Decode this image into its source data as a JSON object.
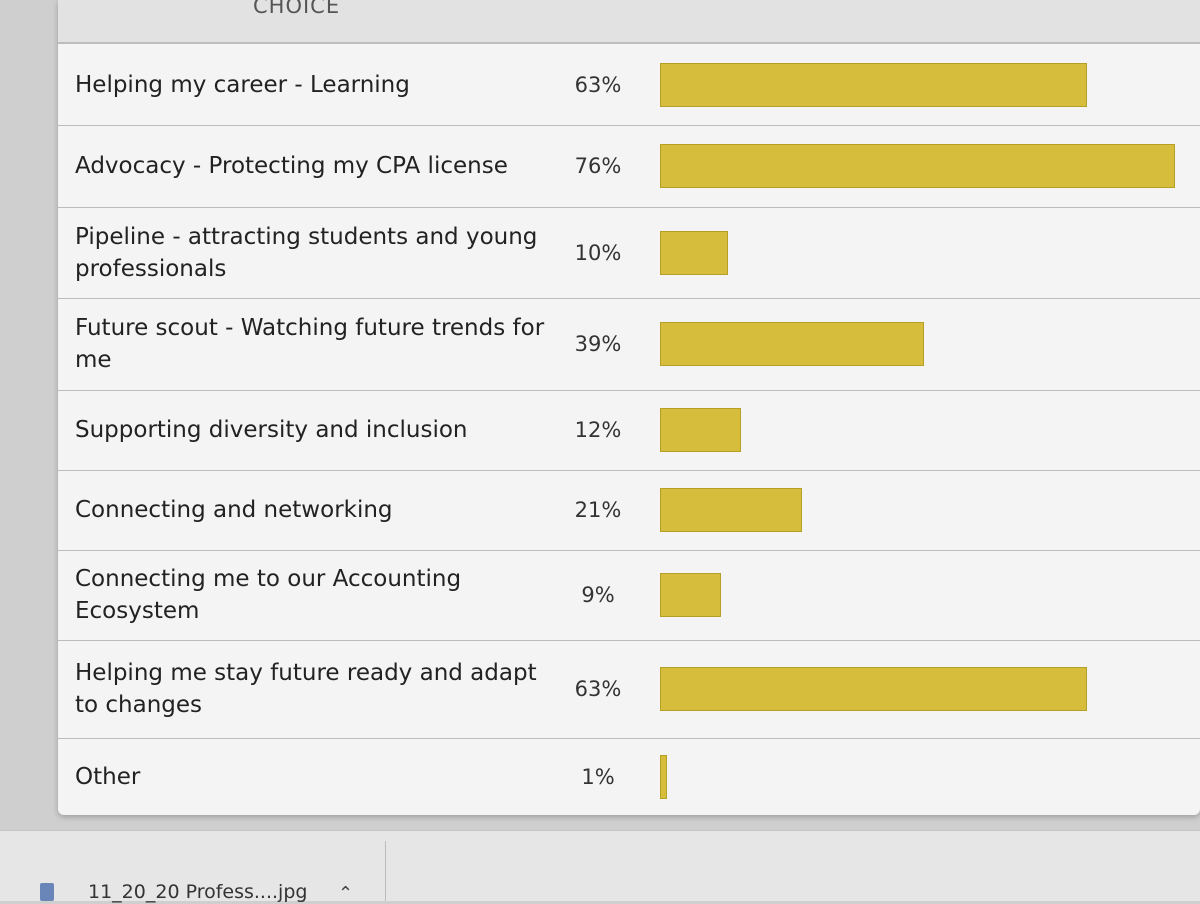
{
  "chart_data": {
    "type": "bar",
    "orientation": "horizontal",
    "column_header": "CHOICE",
    "categories": [
      "Helping my career - Learning",
      "Advocacy - Protecting my CPA license",
      "Pipeline - attracting students and young professionals",
      "Future scout - Watching future trends for me",
      "Supporting diversity and inclusion",
      "Connecting and networking",
      "Connecting me to our Accounting Ecosystem",
      "Helping me stay future ready and adapt to changes",
      "Other"
    ],
    "values": [
      63,
      76,
      10,
      39,
      12,
      21,
      9,
      63,
      1
    ],
    "value_labels": [
      "63%",
      "76%",
      "10%",
      "39%",
      "12%",
      "21%",
      "9%",
      "63%",
      "1%"
    ],
    "color": "#d6be3c"
  },
  "download_bar": {
    "file_name": "11_20_20 Profess....jpg"
  }
}
